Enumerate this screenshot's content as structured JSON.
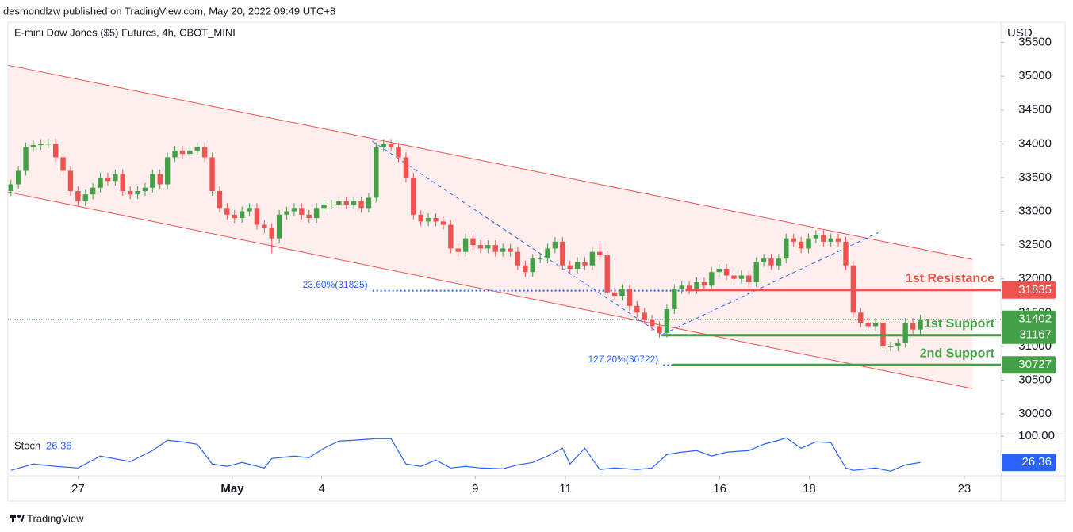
{
  "header": "desmondlzw published on TradingView.com, May 20, 2022 09:49 UTC+8",
  "footer": "TradingView",
  "chart_data": {
    "type": "candlestick",
    "title": "E-mini Dow Jones ($5) Futures, 4h, CBOT_MINI",
    "currency": "USD",
    "up_color": "#43a047",
    "down_color": "#ef5350",
    "xlim": [
      -0.4,
      132.8
    ],
    "xticks": [
      {
        "value": 9,
        "label": "27"
      },
      {
        "value": 29.7,
        "label": "May"
      },
      {
        "value": 41.7,
        "label": "4"
      },
      {
        "value": 62.3,
        "label": "9"
      },
      {
        "value": 74.4,
        "label": "11"
      },
      {
        "value": 95.1,
        "label": "16"
      },
      {
        "value": 107.1,
        "label": "18"
      },
      {
        "value": 127.9,
        "label": "23"
      }
    ],
    "ylim": [
      29720,
      35800
    ],
    "yticks": [
      30000,
      30500,
      31000,
      31500,
      32000,
      32500,
      33000,
      33500,
      34000,
      34500,
      35000,
      35500
    ],
    "candles": [
      [
        33300,
        33470,
        33230,
        33400
      ],
      [
        33400,
        33670,
        33330,
        33600
      ],
      [
        33600,
        34020,
        33530,
        33950
      ],
      [
        33950,
        34050,
        33880,
        33980
      ],
      [
        33980,
        34070,
        33910,
        34000
      ],
      [
        34000,
        34070,
        33930,
        34000
      ],
      [
        34000,
        34070,
        33730,
        33800
      ],
      [
        33800,
        33870,
        33530,
        33600
      ],
      [
        33600,
        33670,
        33230,
        33300
      ],
      [
        33300,
        33370,
        33080,
        33150
      ],
      [
        33150,
        33320,
        33080,
        33250
      ],
      [
        33250,
        33420,
        33180,
        33350
      ],
      [
        33350,
        33570,
        33280,
        33500
      ],
      [
        33500,
        33570,
        33380,
        33450
      ],
      [
        33450,
        33620,
        33380,
        33550
      ],
      [
        33550,
        33620,
        33230,
        33300
      ],
      [
        33300,
        33370,
        33180,
        33250
      ],
      [
        33250,
        33370,
        33180,
        33300
      ],
      [
        33300,
        33420,
        33230,
        33350
      ],
      [
        33350,
        33620,
        33280,
        33550
      ],
      [
        33550,
        33620,
        33330,
        33400
      ],
      [
        33400,
        33870,
        33330,
        33800
      ],
      [
        33800,
        33970,
        33730,
        33900
      ],
      [
        33900,
        33970,
        33780,
        33850
      ],
      [
        33850,
        33970,
        33780,
        33900
      ],
      [
        33900,
        34020,
        33830,
        33950
      ],
      [
        33950,
        34020,
        33730,
        33800
      ],
      [
        33800,
        33870,
        33230,
        33300
      ],
      [
        33300,
        33370,
        32980,
        33050
      ],
      [
        33050,
        33120,
        32880,
        32950
      ],
      [
        32950,
        33020,
        32830,
        32900
      ],
      [
        32900,
        33070,
        32830,
        33000
      ],
      [
        33000,
        33120,
        32930,
        33050
      ],
      [
        33050,
        33120,
        32730,
        32800
      ],
      [
        32800,
        32870,
        32680,
        32750
      ],
      [
        32750,
        32820,
        32380,
        32600
      ],
      [
        32600,
        33020,
        32530,
        32950
      ],
      [
        32950,
        33070,
        32880,
        33000
      ],
      [
        33000,
        33120,
        32930,
        33050
      ],
      [
        33050,
        33120,
        32880,
        32950
      ],
      [
        32950,
        33020,
        32830,
        32900
      ],
      [
        32900,
        33120,
        32830,
        33050
      ],
      [
        33050,
        33170,
        32980,
        33100
      ],
      [
        33100,
        33170,
        33030,
        33100
      ],
      [
        33100,
        33220,
        33030,
        33150
      ],
      [
        33150,
        33220,
        33030,
        33100
      ],
      [
        33100,
        33220,
        33030,
        33150
      ],
      [
        33150,
        33220,
        32980,
        33050
      ],
      [
        33050,
        33270,
        32980,
        33200
      ],
      [
        33200,
        34020,
        33130,
        33950
      ],
      [
        33950,
        34070,
        33880,
        34000
      ],
      [
        34000,
        34070,
        33880,
        33950
      ],
      [
        33950,
        34020,
        33730,
        33800
      ],
      [
        33800,
        33870,
        33430,
        33500
      ],
      [
        33500,
        33570,
        32880,
        32950
      ],
      [
        32950,
        33020,
        32780,
        32850
      ],
      [
        32850,
        32970,
        32780,
        32900
      ],
      [
        32900,
        32970,
        32780,
        32850
      ],
      [
        32850,
        32920,
        32730,
        32800
      ],
      [
        32800,
        32870,
        32380,
        32450
      ],
      [
        32450,
        32520,
        32330,
        32400
      ],
      [
        32400,
        32670,
        32330,
        32600
      ],
      [
        32600,
        32670,
        32430,
        32500
      ],
      [
        32500,
        32570,
        32380,
        32450
      ],
      [
        32450,
        32570,
        32380,
        32500
      ],
      [
        32500,
        32570,
        32330,
        32400
      ],
      [
        32400,
        32520,
        32330,
        32450
      ],
      [
        32450,
        32520,
        32330,
        32400
      ],
      [
        32400,
        32470,
        32130,
        32200
      ],
      [
        32200,
        32270,
        32030,
        32100
      ],
      [
        32100,
        32370,
        32030,
        32300
      ],
      [
        32300,
        32370,
        32230,
        32300
      ],
      [
        32300,
        32520,
        32230,
        32450
      ],
      [
        32450,
        32620,
        32380,
        32550
      ],
      [
        32550,
        32620,
        32130,
        32200
      ],
      [
        32200,
        32270,
        32080,
        32150
      ],
      [
        32150,
        32320,
        32080,
        32250
      ],
      [
        32250,
        32320,
        32130,
        32200
      ],
      [
        32200,
        32470,
        32130,
        32400
      ],
      [
        32400,
        32520,
        32280,
        32350
      ],
      [
        32350,
        32420,
        31730,
        31800
      ],
      [
        31800,
        31870,
        31680,
        31750
      ],
      [
        31750,
        31920,
        31680,
        31850
      ],
      [
        31850,
        31920,
        31530,
        31600
      ],
      [
        31600,
        31670,
        31430,
        31500
      ],
      [
        31500,
        31570,
        31330,
        31400
      ],
      [
        31400,
        31470,
        31230,
        31300
      ],
      [
        31300,
        31370,
        31130,
        31200
      ],
      [
        31200,
        31620,
        31130,
        31550
      ],
      [
        31550,
        31920,
        31480,
        31850
      ],
      [
        31850,
        31970,
        31780,
        31900
      ],
      [
        31900,
        31970,
        31780,
        31850
      ],
      [
        31850,
        32020,
        31780,
        31950
      ],
      [
        31950,
        32020,
        31830,
        31900
      ],
      [
        31900,
        32170,
        31830,
        32100
      ],
      [
        32100,
        32220,
        32030,
        32150
      ],
      [
        32150,
        32220,
        31980,
        32050
      ],
      [
        32050,
        32120,
        31930,
        32000
      ],
      [
        32000,
        32120,
        31930,
        32050
      ],
      [
        32050,
        32120,
        31880,
        31950
      ],
      [
        31950,
        32320,
        31880,
        32250
      ],
      [
        32250,
        32370,
        32180,
        32300
      ],
      [
        32300,
        32370,
        32130,
        32200
      ],
      [
        32200,
        32370,
        32130,
        32300
      ],
      [
        32300,
        32670,
        32230,
        32600
      ],
      [
        32600,
        32670,
        32480,
        32550
      ],
      [
        32550,
        32620,
        32380,
        32450
      ],
      [
        32450,
        32670,
        32380,
        32600
      ],
      [
        32600,
        32720,
        32530,
        32650
      ],
      [
        32650,
        32720,
        32480,
        32550
      ],
      [
        32550,
        32670,
        32480,
        32600
      ],
      [
        32600,
        32670,
        32480,
        32550
      ],
      [
        32550,
        32620,
        32130,
        32200
      ],
      [
        32200,
        32270,
        31430,
        31500
      ],
      [
        31500,
        31570,
        31280,
        31350
      ],
      [
        31350,
        31420,
        31230,
        31300
      ],
      [
        31300,
        31420,
        31230,
        31350
      ],
      [
        31350,
        31420,
        30930,
        31000
      ],
      [
        31000,
        31070,
        30930,
        31000
      ],
      [
        31000,
        31120,
        30930,
        31050
      ],
      [
        31050,
        31420,
        30980,
        31350
      ],
      [
        31350,
        31420,
        31180,
        31250
      ],
      [
        31250,
        31470,
        31180,
        31402
      ]
    ],
    "channel": {
      "color": "#ef5350",
      "fill": "#fde7e7",
      "x": [
        -0.4,
        129
      ],
      "upper": [
        35164,
        32288
      ],
      "lower": [
        33286,
        30374
      ]
    },
    "trend_path": {
      "color": "#2962ff",
      "x": [
        48.5,
        87.3,
        116.4
      ],
      "values": [
        34037,
        31173,
        32687
      ]
    },
    "fib_levels": [
      {
        "label": "23.60%(31825)",
        "value": 31825,
        "from": 48.5,
        "to": 90.5
      },
      {
        "label": "127.20%(30722)",
        "value": 30722,
        "from": 87.5,
        "to": 88.8
      }
    ],
    "levels": [
      {
        "label": "1st Resistance",
        "value": 31835,
        "color": "#ef5350",
        "from": 90.5
      },
      {
        "label": "1st Support",
        "value": 31167,
        "color": "#43a047",
        "from": 87.3
      },
      {
        "label": "2nd Support",
        "value": 30727,
        "color": "#43a047",
        "from": 88.7
      }
    ],
    "stoch": {
      "name": "Stoch",
      "color": "#2962ff",
      "ylim": [
        -6.5,
        105
      ],
      "yticks": [
        {
          "value": 100,
          "label": "100.00"
        }
      ],
      "last_label": "26.36",
      "x": [
        0,
        3,
        6,
        9,
        12,
        16,
        19,
        21,
        23,
        25,
        27,
        29,
        31,
        34,
        35,
        38,
        40,
        42,
        44,
        46,
        49,
        51,
        53,
        55,
        57,
        59,
        61,
        63,
        66,
        68,
        70,
        72,
        74,
        75,
        77,
        79,
        81,
        84,
        86,
        88,
        90,
        92,
        94,
        96,
        99,
        101,
        103,
        104,
        106,
        108,
        110,
        112,
        113,
        116,
        118,
        120,
        122
      ],
      "values": [
        4.0,
        21.9,
        15.2,
        10.7,
        44.2,
        28.6,
        59.8,
        88.8,
        84.4,
        77.7,
        21.9,
        15.2,
        26.3,
        10.7,
        37.5,
        44.2,
        39.7,
        66.5,
        86.6,
        88.8,
        93.3,
        93.3,
        21.9,
        15.2,
        33.0,
        10.7,
        15.2,
        10.7,
        8.5,
        19.6,
        26.3,
        44.2,
        66.5,
        21.9,
        66.5,
        6.3,
        10.7,
        6.3,
        10.7,
        48.7,
        55.4,
        59.8,
        44.2,
        55.4,
        59.8,
        77.7,
        88.8,
        95.5,
        66.5,
        84.4,
        82.1,
        10.7,
        4.0,
        10.7,
        1.8,
        19.6,
        26.36
      ]
    }
  }
}
